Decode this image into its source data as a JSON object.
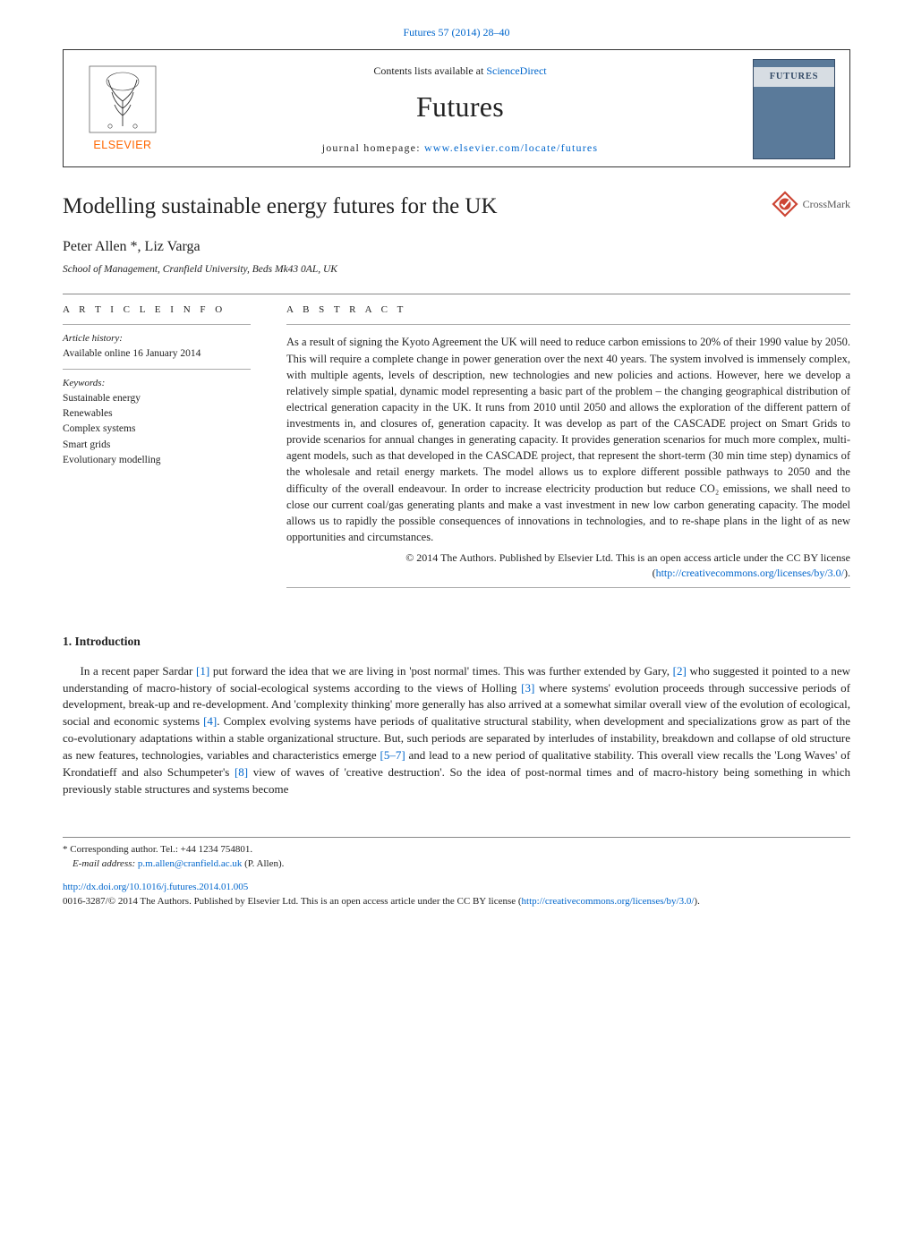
{
  "top_citation": "Futures 57 (2014) 28–40",
  "header": {
    "contents_prefix": "Contents lists available at ",
    "contents_link_text": "ScienceDirect",
    "journal": "Futures",
    "homepage_prefix": "journal homepage: ",
    "homepage_link_text": "www.elsevier.com/locate/futures",
    "publisher_logo_label": "ELSEVIER",
    "cover_label": "FUTURES"
  },
  "article": {
    "title": "Modelling sustainable energy futures for the UK",
    "crossmark_label": "CrossMark",
    "authors": "Peter Allen *, Liz Varga",
    "affiliation": "School of Management, Cranfield University, Beds Mk43 0AL, UK"
  },
  "info": {
    "heading": "A R T I C L E   I N F O",
    "history_heading": "Article history:",
    "history_line": "Available online 16 January 2014",
    "keywords_heading": "Keywords:",
    "keywords": [
      "Sustainable energy",
      "Renewables",
      "Complex systems",
      "Smart grids",
      "Evolutionary modelling"
    ]
  },
  "abstract": {
    "heading": "A B S T R A C T",
    "text": "As a result of signing the Kyoto Agreement the UK will need to reduce carbon emissions to 20% of their 1990 value by 2050. This will require a complete change in power generation over the next 40 years. The system involved is immensely complex, with multiple agents, levels of description, new technologies and new policies and actions. However, here we develop a relatively simple spatial, dynamic model representing a basic part of the problem – the changing geographical distribution of electrical generation capacity in the UK. It runs from 2010 until 2050 and allows the exploration of the different pattern of investments in, and closures of, generation capacity. It was develop as part of the CASCADE project on Smart Grids to provide scenarios for annual changes in generating capacity. It provides generation scenarios for much more complex, multi-agent models, such as that developed in the CASCADE project, that represent the short-term (30 min time step) dynamics of the wholesale and retail energy markets. The model allows us to explore different possible pathways to 2050 and the difficulty of the overall endeavour. In order to increase electricity production but reduce CO₂ emissions, we shall need to close our current coal/gas generating plants and make a vast investment in new low carbon generating capacity. The model allows us to rapidly the possible consequences of innovations in technologies, and to re-shape plans in the light of as new opportunities and circumstances.",
    "license_prefix": "© 2014 The Authors. Published by Elsevier Ltd. This is an open access article under the CC BY license (",
    "license_link": "http://creativecommons.org/licenses/by/3.0/",
    "license_suffix": ")."
  },
  "section1": {
    "heading": "1. Introduction",
    "paragraph": "In a recent paper Sardar [1] put forward the idea that we are living in 'post normal' times. This was further extended by Gary, [2] who suggested it pointed to a new understanding of macro-history of social-ecological systems according to the views of Holling [3] where systems' evolution proceeds through successive periods of development, break-up and re-development. And 'complexity thinking' more generally has also arrived at a somewhat similar overall view of the evolution of ecological, social and economic systems [4]. Complex evolving systems have periods of qualitative structural stability, when development and specializations grow as part of the co-evolutionary adaptations within a stable organizational structure. But, such periods are separated by interludes of instability, breakdown and collapse of old structure as new features, technologies, variables and characteristics emerge [5–7] and lead to a new period of qualitative stability. This overall view recalls the 'Long Waves' of Krondatieff and also Schumpeter's [8] view of waves of 'creative destruction'. So the idea of post-normal times and of macro-history being something in which previously stable structures and systems become",
    "ref_tokens": [
      "[1]",
      "[2]",
      "[3]",
      "[4]",
      "[5–7]",
      "[8]"
    ]
  },
  "footnotes": {
    "corresponding": "* Corresponding author. Tel.: +44 1234 754801.",
    "email_label": "E-mail address: ",
    "email": "p.m.allen@cranfield.ac.uk",
    "email_suffix": " (P. Allen).",
    "doi_link": "http://dx.doi.org/10.1016/j.futures.2014.01.005",
    "copyright_prefix": "0016-3287/© 2014 The Authors. Published by Elsevier Ltd. This is an open access article under the CC BY license (",
    "copyright_link": "http://creativecommons.org/licenses/by/3.0/",
    "copyright_suffix": ")."
  },
  "colors": {
    "link": "#0066cc",
    "elsevier_orange": "#ff6600",
    "cover_bg": "#5a7a9a",
    "cover_band_bg": "#d7dde3",
    "cover_text": "#334a66",
    "rule": "#888888"
  }
}
